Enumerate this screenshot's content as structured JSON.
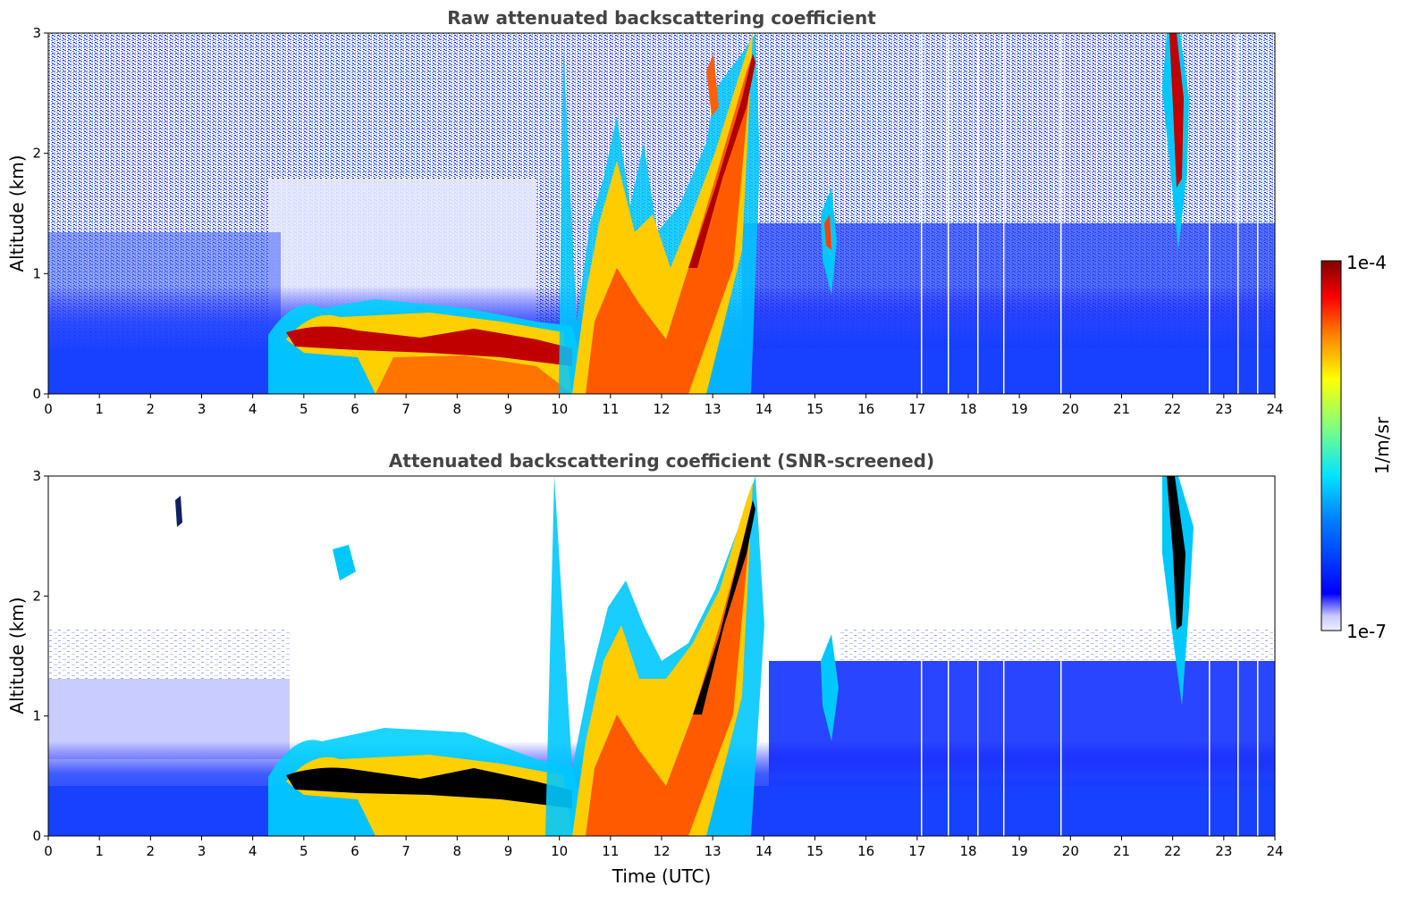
{
  "chart_data": [
    {
      "type": "heatmap",
      "title": "Raw attenuated backscattering coefficient",
      "xlabel": "",
      "ylabel": "Altitude (km)",
      "xlim": [
        0,
        24
      ],
      "ylim": [
        0,
        3
      ],
      "x_ticks": [
        "0",
        "1",
        "2",
        "3",
        "4",
        "5",
        "6",
        "7",
        "8",
        "9",
        "10",
        "11",
        "12",
        "13",
        "14",
        "15",
        "16",
        "17",
        "18",
        "19",
        "20",
        "21",
        "22",
        "23",
        "24"
      ],
      "y_ticks": [
        "0",
        "1",
        "2",
        "3"
      ],
      "features": [
        {
          "label": "boundary-layer aerosol (blue)",
          "x_range": [
            0,
            24
          ],
          "top_km": 0.6
        },
        {
          "label": "strong cloud layer",
          "x_range": [
            4.6,
            10.2
          ],
          "altitude_km": 0.45
        },
        {
          "label": "rising cloud/precipitation",
          "x_range": [
            10.5,
            13.9
          ],
          "altitude_km": [
            0.5,
            3.0
          ]
        },
        {
          "label": "isolated cloud",
          "x_range": [
            21.9,
            22.4
          ],
          "altitude_km": [
            1.6,
            3.0
          ]
        }
      ]
    },
    {
      "type": "heatmap",
      "title": "Attenuated backscattering coefficient (SNR-screened)",
      "xlabel": "Time (UTC)",
      "ylabel": "Altitude (km)",
      "xlim": [
        0,
        24
      ],
      "ylim": [
        0,
        3
      ],
      "x_ticks": [
        "0",
        "1",
        "2",
        "3",
        "4",
        "5",
        "6",
        "7",
        "8",
        "9",
        "10",
        "11",
        "12",
        "13",
        "14",
        "15",
        "16",
        "17",
        "18",
        "19",
        "20",
        "21",
        "22",
        "23",
        "24"
      ],
      "y_ticks": [
        "0",
        "1",
        "2",
        "3"
      ]
    }
  ],
  "colorbar": {
    "label": "1/m/sr",
    "max_label": "1e-4",
    "min_label": "1e-7",
    "range": [
      1e-07,
      0.0001
    ],
    "scale": "log",
    "colormap": "jet",
    "colors": [
      "#eeeeff",
      "#c8c8ff",
      "#0000ff",
      "#0080ff",
      "#00e5ff",
      "#7fff7f",
      "#ffff00",
      "#ff8000",
      "#ff0000",
      "#800000"
    ]
  }
}
